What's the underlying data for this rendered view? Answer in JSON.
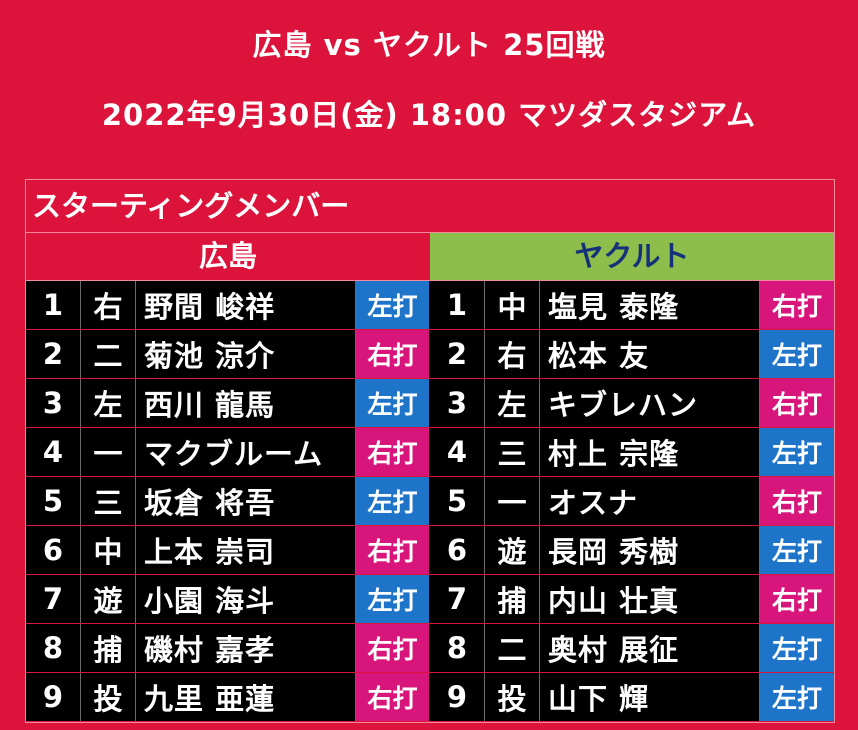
{
  "header": {
    "matchup": "広島 vs ヤクルト 25回戦",
    "datetime": "2022年9月30日(金) 18:00 マツダスタジアム"
  },
  "board": {
    "title": "スターティングメンバー",
    "home": {
      "team": "広島",
      "lineup": [
        {
          "order": "1",
          "pos": "右",
          "name": "野間 峻祥",
          "bat": "左打",
          "bat_side": "left"
        },
        {
          "order": "2",
          "pos": "二",
          "name": "菊池 涼介",
          "bat": "右打",
          "bat_side": "right"
        },
        {
          "order": "3",
          "pos": "左",
          "name": "西川 龍馬",
          "bat": "左打",
          "bat_side": "left"
        },
        {
          "order": "4",
          "pos": "一",
          "name": "マクブルーム",
          "bat": "右打",
          "bat_side": "right"
        },
        {
          "order": "5",
          "pos": "三",
          "name": "坂倉 将吾",
          "bat": "左打",
          "bat_side": "left"
        },
        {
          "order": "6",
          "pos": "中",
          "name": "上本 崇司",
          "bat": "右打",
          "bat_side": "right"
        },
        {
          "order": "7",
          "pos": "遊",
          "name": "小園 海斗",
          "bat": "左打",
          "bat_side": "left"
        },
        {
          "order": "8",
          "pos": "捕",
          "name": "磯村 嘉孝",
          "bat": "右打",
          "bat_side": "right"
        },
        {
          "order": "9",
          "pos": "投",
          "name": "九里 亜蓮",
          "bat": "右打",
          "bat_side": "right"
        }
      ]
    },
    "away": {
      "team": "ヤクルト",
      "lineup": [
        {
          "order": "1",
          "pos": "中",
          "name": "塩見 泰隆",
          "bat": "右打",
          "bat_side": "right"
        },
        {
          "order": "2",
          "pos": "右",
          "name": "松本 友",
          "bat": "左打",
          "bat_side": "left"
        },
        {
          "order": "3",
          "pos": "左",
          "name": "キブレハン",
          "bat": "右打",
          "bat_side": "right"
        },
        {
          "order": "4",
          "pos": "三",
          "name": "村上 宗隆",
          "bat": "左打",
          "bat_side": "left"
        },
        {
          "order": "5",
          "pos": "一",
          "name": "オスナ",
          "bat": "右打",
          "bat_side": "right"
        },
        {
          "order": "6",
          "pos": "遊",
          "name": "長岡 秀樹",
          "bat": "左打",
          "bat_side": "left"
        },
        {
          "order": "7",
          "pos": "捕",
          "name": "内山 壮真",
          "bat": "右打",
          "bat_side": "right"
        },
        {
          "order": "8",
          "pos": "二",
          "name": "奥村 展征",
          "bat": "左打",
          "bat_side": "left"
        },
        {
          "order": "9",
          "pos": "投",
          "name": "山下 輝",
          "bat": "左打",
          "bat_side": "left"
        }
      ]
    }
  },
  "colors": {
    "background": "#dc143c",
    "away_header": "#8dbd4b",
    "away_header_text": "#14317a",
    "left_bat": "#1e74c8",
    "right_bat": "#d8157a"
  }
}
